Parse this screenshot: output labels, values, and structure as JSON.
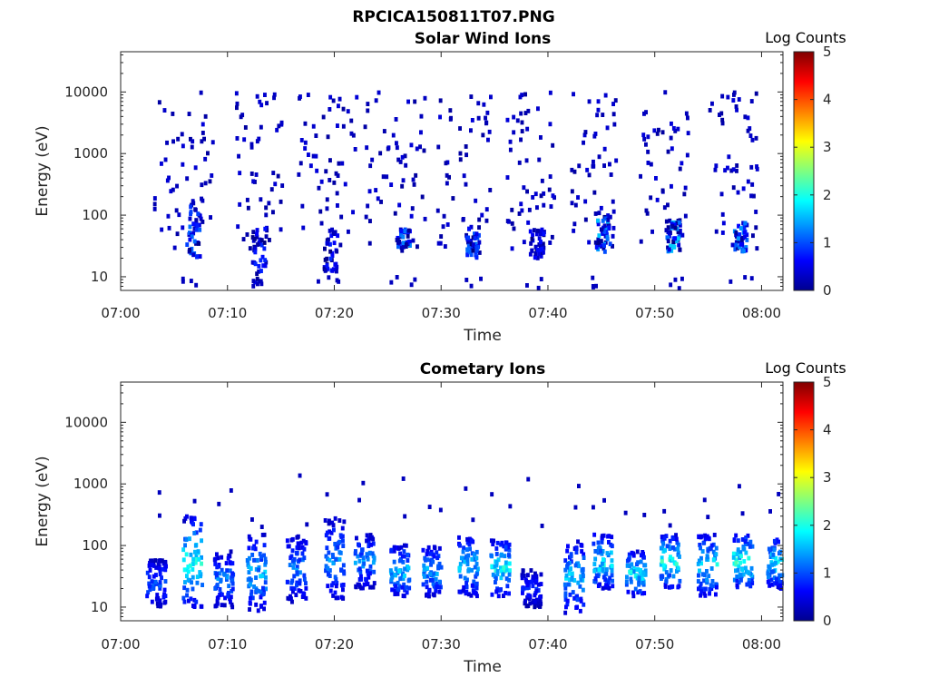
{
  "figure_title": "RPCICA150811T07.PNG",
  "chart_data": [
    {
      "type": "heatmap",
      "title": "Solar Wind Ions",
      "xlabel": "Time",
      "ylabel": "Energy (eV)",
      "x_ticks": [
        "07:00",
        "07:10",
        "07:20",
        "07:30",
        "07:40",
        "07:50",
        "08:00"
      ],
      "y_ticks": [
        "10",
        "100",
        "1000",
        "10000"
      ],
      "y_scale": "log",
      "ylim": [
        6,
        45000
      ],
      "xlim_minutes": [
        0,
        62
      ],
      "colorbar": {
        "label": "Log Counts",
        "range": [
          0,
          5
        ],
        "ticks": [
          "0",
          "1",
          "2",
          "3",
          "4",
          "5"
        ],
        "colormap": "jet"
      },
      "bursts": [
        {
          "center_min": 6.6,
          "sparse_minutes": [
            3.0,
            8.5
          ],
          "core_energy_range": [
            20,
            150
          ],
          "peak_log_counts": 1.2
        },
        {
          "center_min": 12.8,
          "sparse_minutes": [
            10.5,
            15.0
          ],
          "core_energy_range": [
            8,
            60
          ],
          "peak_log_counts": 0.9
        },
        {
          "center_min": 19.5,
          "sparse_minutes": [
            16.5,
            22.0
          ],
          "core_energy_range": [
            12,
            60
          ],
          "peak_log_counts": 0.9
        },
        {
          "center_min": 26.3,
          "sparse_minutes": [
            22.5,
            28.5
          ],
          "core_energy_range": [
            25,
            60
          ],
          "peak_log_counts": 1.3
        },
        {
          "center_min": 32.8,
          "sparse_minutes": [
            29.5,
            34.5
          ],
          "core_energy_range": [
            20,
            60
          ],
          "peak_log_counts": 1.2
        },
        {
          "center_min": 38.8,
          "sparse_minutes": [
            36.0,
            40.5
          ],
          "core_energy_range": [
            20,
            60
          ],
          "peak_log_counts": 0.7
        },
        {
          "center_min": 45.0,
          "sparse_minutes": [
            42.0,
            46.5
          ],
          "core_energy_range": [
            25,
            100
          ],
          "peak_log_counts": 1.6
        },
        {
          "center_min": 51.5,
          "sparse_minutes": [
            48.5,
            53.0
          ],
          "core_energy_range": [
            25,
            80
          ],
          "peak_log_counts": 1.7
        },
        {
          "center_min": 57.8,
          "sparse_minutes": [
            55.0,
            59.5
          ],
          "core_energy_range": [
            25,
            80
          ],
          "peak_log_counts": 1.4
        }
      ]
    },
    {
      "type": "heatmap",
      "title": "Cometary Ions",
      "xlabel": "Time",
      "ylabel": "Energy (eV)",
      "x_ticks": [
        "07:00",
        "07:10",
        "07:20",
        "07:30",
        "07:40",
        "07:50",
        "08:00"
      ],
      "y_ticks": [
        "10",
        "100",
        "1000",
        "10000"
      ],
      "y_scale": "log",
      "ylim": [
        6,
        45000
      ],
      "xlim_minutes": [
        0,
        62
      ],
      "colorbar": {
        "label": "Log Counts",
        "range": [
          0,
          5
        ],
        "ticks": [
          "0",
          "1",
          "2",
          "3",
          "4",
          "5"
        ],
        "colormap": "jet"
      },
      "bursts": [
        {
          "center_min": 3.2,
          "energy_range": [
            10,
            60
          ],
          "peak_log_counts": 1.3
        },
        {
          "center_min": 6.6,
          "energy_range": [
            10,
            300
          ],
          "peak_log_counts": 2.4
        },
        {
          "center_min": 9.5,
          "energy_range": [
            10,
            80
          ],
          "peak_log_counts": 1.5
        },
        {
          "center_min": 12.6,
          "energy_range": [
            8,
            150
          ],
          "peak_log_counts": 1.8
        },
        {
          "center_min": 16.3,
          "energy_range": [
            12,
            150
          ],
          "peak_log_counts": 1.5
        },
        {
          "center_min": 19.9,
          "energy_range": [
            12,
            300
          ],
          "peak_log_counts": 1.6
        },
        {
          "center_min": 22.7,
          "energy_range": [
            20,
            150
          ],
          "peak_log_counts": 1.6
        },
        {
          "center_min": 26.0,
          "energy_range": [
            15,
            100
          ],
          "peak_log_counts": 2.0
        },
        {
          "center_min": 29.0,
          "energy_range": [
            15,
            100
          ],
          "peak_log_counts": 1.8
        },
        {
          "center_min": 32.4,
          "energy_range": [
            15,
            150
          ],
          "peak_log_counts": 1.9
        },
        {
          "center_min": 35.4,
          "energy_range": [
            15,
            120
          ],
          "peak_log_counts": 2.3
        },
        {
          "center_min": 38.3,
          "energy_range": [
            10,
            40
          ],
          "peak_log_counts": 1.0
        },
        {
          "center_min": 42.3,
          "energy_range": [
            8,
            120
          ],
          "peak_log_counts": 1.9
        },
        {
          "center_min": 45.0,
          "energy_range": [
            20,
            150
          ],
          "peak_log_counts": 2.3
        },
        {
          "center_min": 48.1,
          "energy_range": [
            15,
            80
          ],
          "peak_log_counts": 2.2
        },
        {
          "center_min": 51.3,
          "energy_range": [
            20,
            150
          ],
          "peak_log_counts": 2.4
        },
        {
          "center_min": 54.8,
          "energy_range": [
            15,
            150
          ],
          "peak_log_counts": 2.1
        },
        {
          "center_min": 58.1,
          "energy_range": [
            20,
            150
          ],
          "peak_log_counts": 2.5
        },
        {
          "center_min": 61.3,
          "energy_range": [
            20,
            150
          ],
          "peak_log_counts": 2.2
        }
      ]
    }
  ]
}
